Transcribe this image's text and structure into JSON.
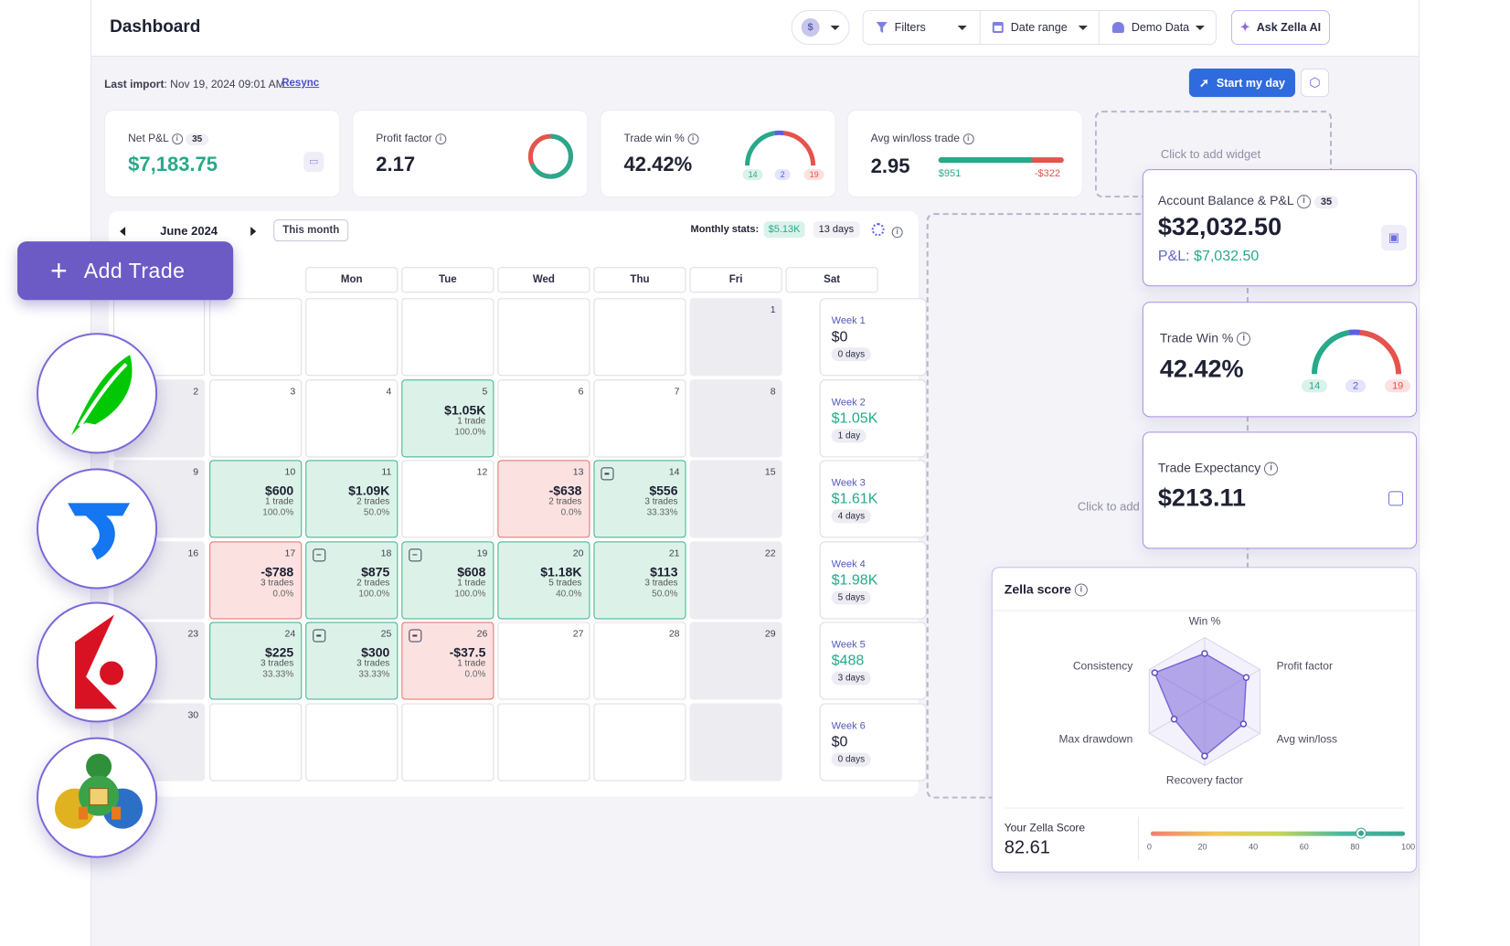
{
  "topbar": {
    "title": "Dashboard",
    "currency_icon": "$",
    "filters": "Filters",
    "date_range": "Date range",
    "demo_data": "Demo Data",
    "ask": "Ask Zella AI"
  },
  "import": {
    "label": "Last import",
    "value": ": Nov 19, 2024 09:01 AM",
    "resync": "Resync",
    "start": "Start my day"
  },
  "stats": {
    "net_pnl": {
      "label": "Net P&L",
      "badge": "35",
      "value": "$7,183.75"
    },
    "profit_factor": {
      "label": "Profit factor",
      "value": "2.17"
    },
    "trade_win": {
      "label": "Trade win %",
      "value": "42.42%",
      "wins": "14",
      "even": "2",
      "losses": "19"
    },
    "avg_win_loss": {
      "label": "Avg win/loss trade",
      "value": "2.95",
      "avg_win": "$951",
      "avg_loss": "-$322",
      "win_fraction": 0.75
    }
  },
  "add_widget": "Click to add widget",
  "add_widget_cut": "Click to add",
  "calendar": {
    "month": "June 2024",
    "this_month": "This month",
    "monthly_stats": "Monthly stats:",
    "monthly_value": "$5.13K",
    "days": "13 days",
    "headers": [
      "Mon",
      "Tue",
      "Wed",
      "Thu",
      "Fri",
      "Sat"
    ],
    "rows": [
      [
        {
          "n": ""
        },
        {
          "n": ""
        },
        {
          "n": ""
        },
        {
          "n": ""
        },
        {
          "n": ""
        },
        {
          "n": ""
        },
        {
          "n": "1",
          "g": 1
        }
      ],
      [
        {
          "n": "2",
          "g": 1
        },
        {
          "n": "3"
        },
        {
          "n": "4"
        },
        {
          "n": "5",
          "s": "win",
          "a": "$1.05K",
          "t": "1 trade",
          "p": "100.0%"
        },
        {
          "n": "6"
        },
        {
          "n": "7"
        },
        {
          "n": "8",
          "g": 1
        }
      ],
      [
        {
          "n": "9",
          "g": 1
        },
        {
          "n": "10",
          "s": "win",
          "a": "$600",
          "t": "1 trade",
          "p": "100.0%"
        },
        {
          "n": "11",
          "s": "win",
          "a": "$1.09K",
          "t": "2 trades",
          "p": "50.0%"
        },
        {
          "n": "12"
        },
        {
          "n": "13",
          "s": "loss",
          "a": "-$638",
          "t": "2 trades",
          "p": "0.0%"
        },
        {
          "n": "14",
          "s": "win",
          "a": "$556",
          "t": "3 trades",
          "p": "33.33%",
          "i": 1
        },
        {
          "n": "15",
          "g": 1
        }
      ],
      [
        {
          "n": "16",
          "g": 1
        },
        {
          "n": "17",
          "s": "loss",
          "a": "-$788",
          "t": "3 trades",
          "p": "0.0%"
        },
        {
          "n": "18",
          "s": "win",
          "a": "$875",
          "t": "2 trades",
          "p": "100.0%",
          "i": 1
        },
        {
          "n": "19",
          "s": "win",
          "a": "$608",
          "t": "1 trade",
          "p": "100.0%",
          "i": 1
        },
        {
          "n": "20",
          "s": "win",
          "a": "$1.18K",
          "t": "5 trades",
          "p": "40.0%"
        },
        {
          "n": "21",
          "s": "win",
          "a": "$113",
          "t": "3 trades",
          "p": "50.0%"
        },
        {
          "n": "22",
          "g": 1
        }
      ],
      [
        {
          "n": "23",
          "g": 1
        },
        {
          "n": "24",
          "s": "win",
          "a": "$225",
          "t": "3 trades",
          "p": "33.33%"
        },
        {
          "n": "25",
          "s": "win",
          "a": "$300",
          "t": "3 trades",
          "p": "33.33%",
          "i": 1
        },
        {
          "n": "26",
          "s": "loss",
          "a": "-$37.5",
          "t": "1 trade",
          "p": "0.0%",
          "i": 1
        },
        {
          "n": "27"
        },
        {
          "n": "28"
        },
        {
          "n": "29",
          "g": 1
        }
      ],
      [
        {
          "n": "30",
          "g": 1
        },
        {
          "n": ""
        },
        {
          "n": ""
        },
        {
          "n": ""
        },
        {
          "n": ""
        },
        {
          "n": ""
        },
        {
          "n": "",
          "g": 1
        }
      ]
    ],
    "weeks": [
      {
        "label": "Week 1",
        "value": "$0",
        "days": "0 days",
        "pos": 0
      },
      {
        "label": "Week 2",
        "value": "$1.05K",
        "days": "1 day",
        "pos": 1
      },
      {
        "label": "Week 3",
        "value": "$1.61K",
        "days": "4 days",
        "pos": 1
      },
      {
        "label": "Week 4",
        "value": "$1.98K",
        "days": "5 days",
        "pos": 1
      },
      {
        "label": "Week 5",
        "value": "$488",
        "days": "3 days",
        "pos": 1
      },
      {
        "label": "Week 6",
        "value": "$0",
        "days": "0 days",
        "pos": 0
      }
    ]
  },
  "add_trade": "Add Trade",
  "account": {
    "label": "Account Balance & P&L",
    "badge": "35",
    "balance": "$32,032.50",
    "pnl_label": "P&L:",
    "pnl": "$7,032.50"
  },
  "trade_win_card": {
    "label": "Trade Win %",
    "value": "42.42%",
    "wins": "14",
    "even": "2",
    "losses": "19"
  },
  "expectancy": {
    "label": "Trade Expectancy",
    "value": "$213.11"
  },
  "zella": {
    "title": "Zella score",
    "axes": [
      "Win %",
      "Profit factor",
      "Avg win/loss",
      "Recovery factor",
      "Max drawdown",
      "Consistency"
    ],
    "values": [
      0.75,
      0.75,
      0.7,
      0.85,
      0.55,
      0.9
    ],
    "score_label": "Your Zella Score",
    "score": "82.61",
    "ticks": [
      "0",
      "20",
      "40",
      "60",
      "80",
      "100"
    ],
    "score_value": 82.61
  },
  "colors": {
    "accent": "#5b5fe6",
    "green": "#27a98a",
    "red": "#e4544d",
    "purple": "#7d67d8"
  }
}
